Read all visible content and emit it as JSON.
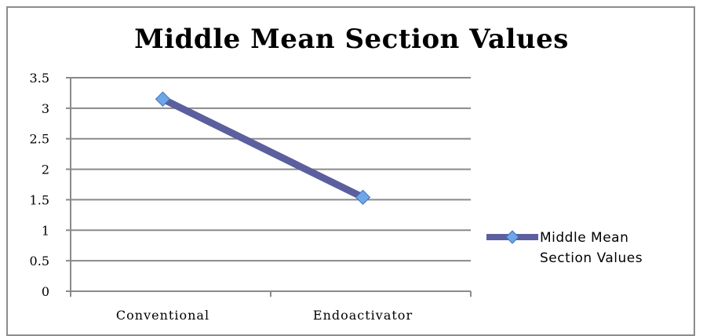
{
  "chart_data": {
    "type": "line",
    "title": "Middle  Mean Section Values",
    "categories": [
      "Conventional",
      "Endoactivator"
    ],
    "series": [
      {
        "name": "Middle  Mean Section Values",
        "values": [
          3.15,
          1.54
        ],
        "color": "#5b5f9e",
        "marker_color": "#6ea6e8"
      }
    ],
    "ylim": [
      0,
      3.5
    ],
    "yticks": [
      "0",
      "0.5",
      "1",
      "1.5",
      "2",
      "2.5",
      "3",
      "3.5"
    ],
    "grid": true,
    "legend": "right",
    "legend_lines": [
      "Middle  Mean",
      "Section Values"
    ]
  }
}
